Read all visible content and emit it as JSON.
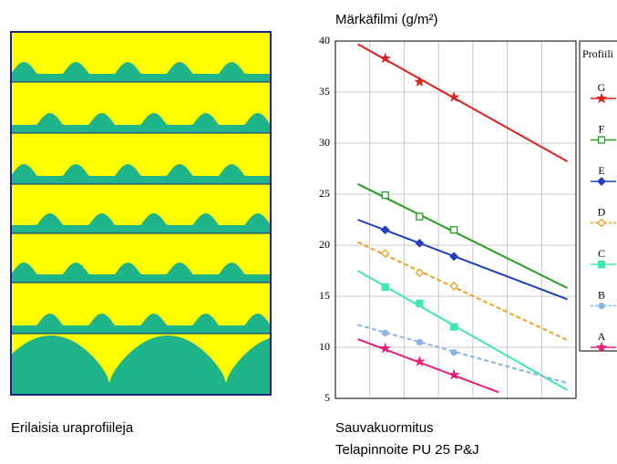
{
  "caption": "Erilaisia uraprofiileja",
  "chart_data": {
    "type": "line",
    "title": "Märkäfilmi (g/m²)",
    "xlabel_lines": [
      "Sauvakuormitus",
      "Telapinnoite PU 25 P&J"
    ],
    "legend_title": "Profiili",
    "xlim": [
      0,
      7
    ],
    "xgrid": [
      0,
      1,
      2,
      3,
      4,
      5,
      6,
      7
    ],
    "ylim": [
      5,
      40
    ],
    "yticks": [
      5,
      10,
      15,
      20,
      25,
      30,
      35,
      40
    ],
    "grid": true,
    "series": [
      {
        "name": "G",
        "color": "#e0201b",
        "marker": "star",
        "dashed": false,
        "x": [
          1.45,
          2.45,
          3.45
        ],
        "values": [
          38.3,
          36.0,
          34.5
        ],
        "fit_x": [
          0.65,
          6.75
        ],
        "fit_values": [
          39.7,
          28.2
        ]
      },
      {
        "name": "F",
        "color": "#22a022",
        "marker": "square-open",
        "dashed": false,
        "x": [
          1.45,
          2.45,
          3.45
        ],
        "values": [
          24.9,
          22.8,
          21.5
        ],
        "fit_x": [
          0.65,
          6.75
        ],
        "fit_values": [
          26.0,
          15.8
        ]
      },
      {
        "name": "E",
        "color": "#1f3fbf",
        "marker": "diamond",
        "dashed": false,
        "x": [
          1.45,
          2.45,
          3.45
        ],
        "values": [
          21.5,
          20.2,
          18.9
        ],
        "fit_x": [
          0.65,
          6.75
        ],
        "fit_values": [
          22.5,
          14.7
        ]
      },
      {
        "name": "D",
        "color": "#f0a020",
        "marker": "diamond-open",
        "dashed": true,
        "x": [
          1.45,
          2.45,
          3.45
        ],
        "values": [
          19.2,
          17.3,
          16.0
        ],
        "fit_x": [
          0.65,
          6.75
        ],
        "fit_values": [
          20.3,
          10.7
        ]
      },
      {
        "name": "C",
        "color": "#40e8b0",
        "marker": "square",
        "dashed": false,
        "x": [
          1.45,
          2.45,
          3.45
        ],
        "values": [
          15.9,
          14.3,
          12.0
        ],
        "fit_x": [
          0.65,
          6.75
        ],
        "fit_values": [
          17.5,
          5.8
        ]
      },
      {
        "name": "B",
        "color": "#8ab4e8",
        "marker": "circle",
        "dashed": true,
        "x": [
          1.45,
          2.45,
          3.45
        ],
        "values": [
          11.4,
          10.5,
          9.5
        ],
        "fit_x": [
          0.65,
          6.75
        ],
        "fit_values": [
          12.2,
          6.5
        ]
      },
      {
        "name": "A",
        "color": "#e8207a",
        "marker": "star",
        "dashed": false,
        "x": [
          1.45,
          2.45,
          3.45
        ],
        "values": [
          9.9,
          8.6,
          7.3
        ],
        "fit_x": [
          0.65,
          4.75
        ],
        "fit_values": [
          10.8,
          5.6
        ]
      }
    ]
  }
}
